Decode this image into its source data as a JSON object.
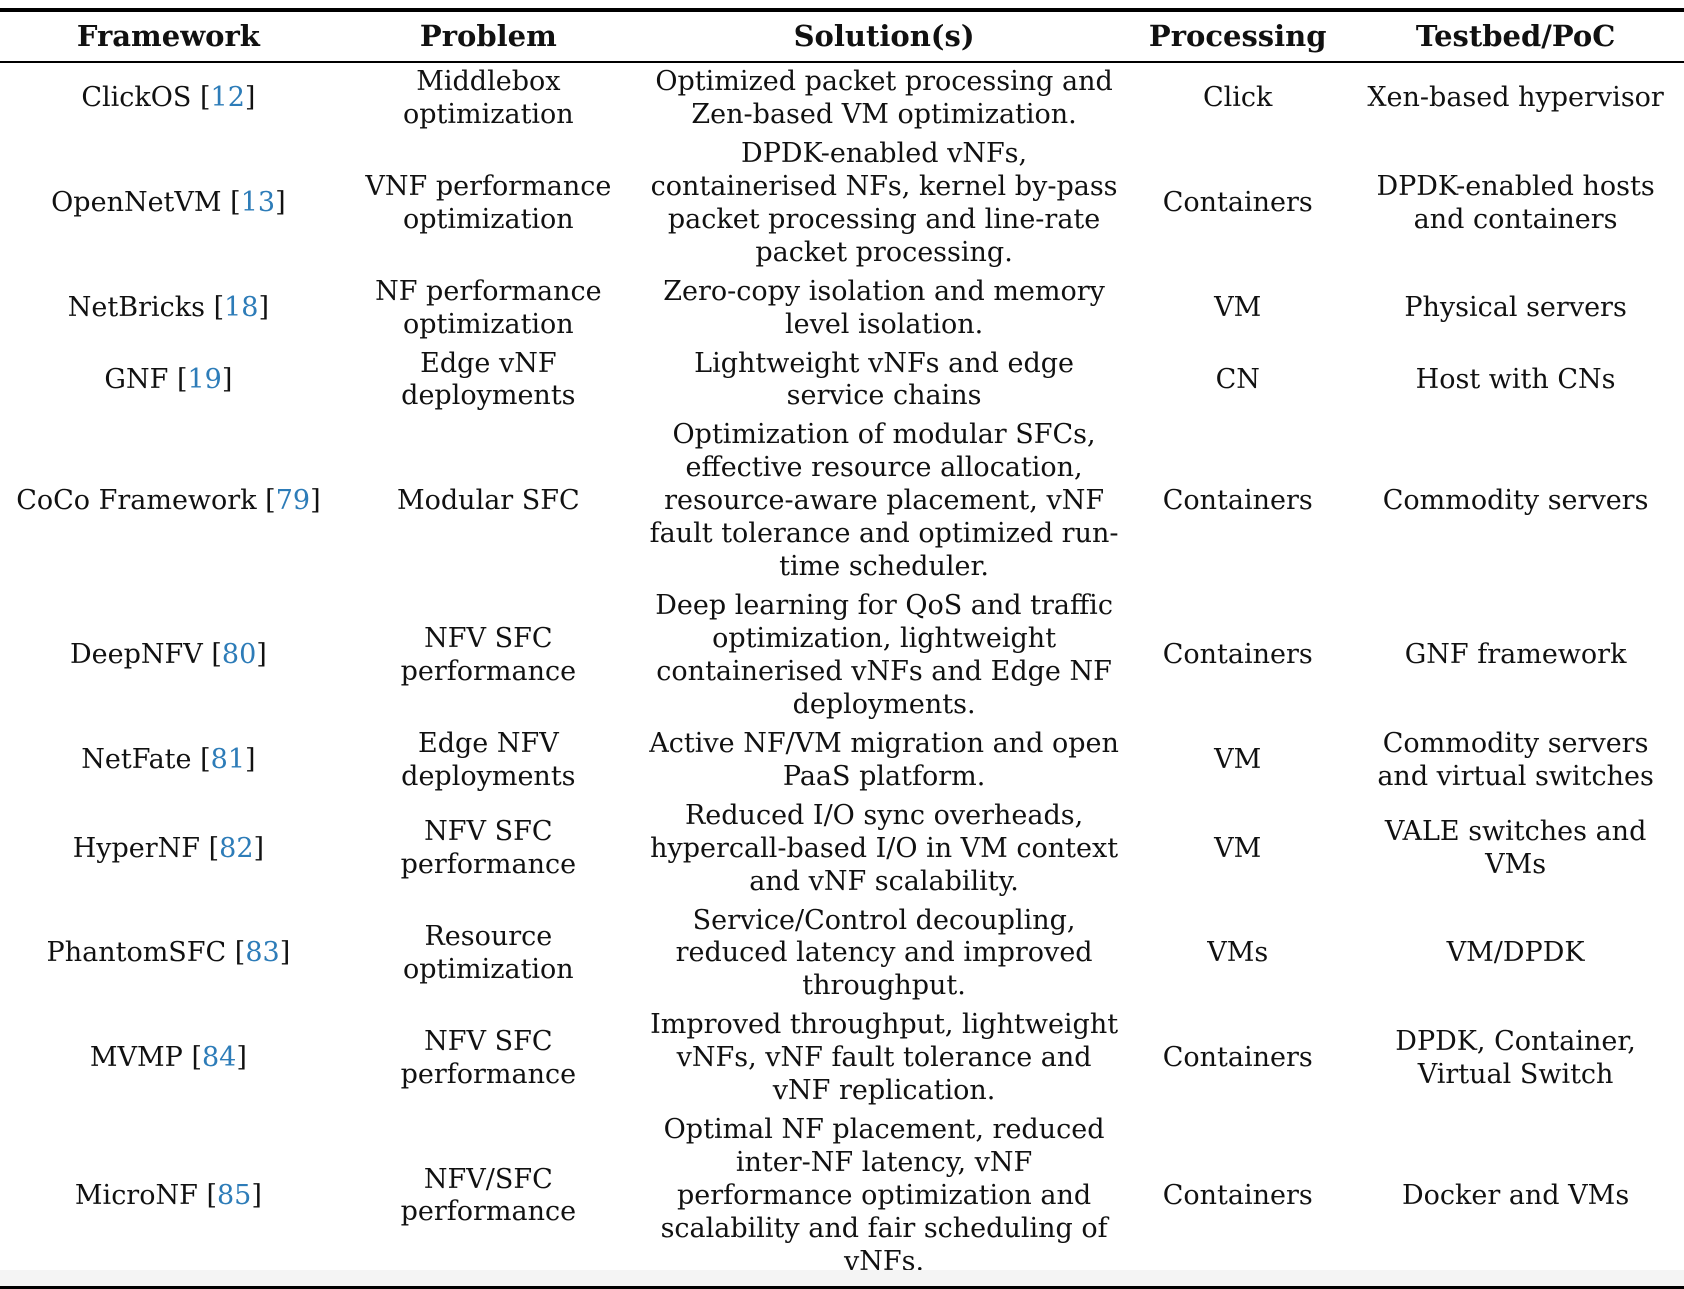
{
  "colors": {
    "citation_blue": "#2d7cb8",
    "text": "#111111",
    "rule": "#000000"
  },
  "punct": {
    "open": "[",
    "close": "]"
  },
  "table": {
    "headers": [
      "Framework",
      "Problem",
      "Solution(s)",
      "Processing",
      "Testbed/PoC"
    ],
    "rows": [
      {
        "name": "ClickOS",
        "cite": "12",
        "problem": "Middlebox optimization",
        "solution": "Optimized packet processing and Zen-based VM optimization.",
        "processing": "Click",
        "testbed": "Xen-based hypervisor"
      },
      {
        "name": "OpenNetVM",
        "cite": "13",
        "problem": "VNF performance optimization",
        "solution": "DPDK-enabled vNFs, containerised NFs, kernel by-pass packet processing and line-rate packet processing.",
        "processing": "Containers",
        "testbed": "DPDK-enabled hosts and containers"
      },
      {
        "name": "NetBricks",
        "cite": "18",
        "problem": "NF performance optimization",
        "solution": "Zero-copy isolation and memory level isolation.",
        "processing": "VM",
        "testbed": "Physical servers"
      },
      {
        "name": "GNF",
        "cite": "19",
        "problem": "Edge vNF deployments",
        "solution": "Lightweight vNFs and edge service chains",
        "processing": "CN",
        "testbed": "Host with CNs"
      },
      {
        "name": "CoCo Framework",
        "cite": "79",
        "problem": "Modular SFC",
        "solution": "Optimization of modular SFCs, effective resource allocation, resource-aware placement, vNF fault tolerance and optimized run-time scheduler.",
        "processing": "Containers",
        "testbed": "Commodity servers"
      },
      {
        "name": "DeepNFV",
        "cite": "80",
        "problem": "NFV SFC performance",
        "solution": "Deep learning for QoS and traffic optimization, lightweight containerised vNFs and Edge NF deployments.",
        "processing": "Containers",
        "testbed": "GNF framework"
      },
      {
        "name": "NetFate",
        "cite": "81",
        "problem": "Edge NFV deployments",
        "solution": "Active NF/VM migration and open PaaS platform.",
        "processing": "VM",
        "testbed": "Commodity servers and virtual switches"
      },
      {
        "name": "HyperNF",
        "cite": "82",
        "problem": "NFV SFC performance",
        "solution": "Reduced I/O sync overheads, hypercall-based I/O in VM context and vNF scalability.",
        "processing": "VM",
        "testbed": "VALE switches and VMs"
      },
      {
        "name": "PhantomSFC",
        "cite": "83",
        "problem": "Resource optimization",
        "solution": "Service/Control decoupling, reduced latency and improved throughput.",
        "processing": "VMs",
        "testbed": "VM/DPDK"
      },
      {
        "name": "MVMP",
        "cite": "84",
        "problem": "NFV SFC performance",
        "solution": "Improved throughput, lightweight vNFs, vNF fault tolerance and vNF replication.",
        "processing": "Containers",
        "testbed": "DPDK, Container, Virtual Switch"
      },
      {
        "name": "MicroNF",
        "cite": "85",
        "problem": "NFV/SFC performance",
        "solution": "Optimal NF placement, reduced inter-NF latency, vNF performance optimization and scalability and fair scheduling of vNFs.",
        "processing": "Containers",
        "testbed": "Docker and VMs"
      }
    ]
  }
}
